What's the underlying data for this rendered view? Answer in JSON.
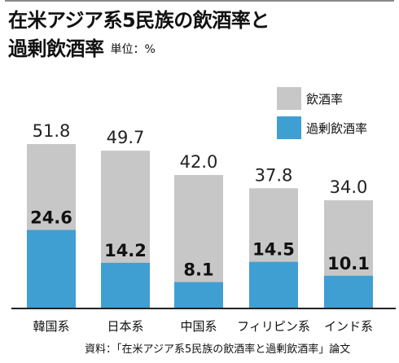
{
  "header": {
    "title_line1": "在米アジア系5民族の飲酒率と",
    "title_line2": "過剰飲酒率",
    "unit": "単位：%"
  },
  "source": "資料：「在米アジア系5民族の飲酒率と過剰飲酒率」論文",
  "colors": {
    "drinking": "#c7c7c7",
    "heavy": "#3f9fd3",
    "axis": "#222222"
  },
  "chart_data": {
    "type": "bar",
    "categories": [
      "韓国系",
      "日本系",
      "中国系",
      "フィリピン系",
      "インド系"
    ],
    "series": [
      {
        "name": "飲酒率",
        "values": [
          51.8,
          49.7,
          42.0,
          37.8,
          34.0
        ],
        "labels": [
          "51.8",
          "49.7",
          "42.0",
          "37.8",
          "34.0"
        ]
      },
      {
        "name": "過剰飲酒率",
        "values": [
          24.6,
          14.2,
          8.1,
          14.5,
          10.1
        ],
        "labels": [
          "24.6",
          "14.2",
          "8.1",
          "14.5",
          "10.1"
        ]
      }
    ],
    "overlay": true,
    "ylim": [
      0,
      51.8
    ],
    "grid": false,
    "legend": "top-right"
  }
}
